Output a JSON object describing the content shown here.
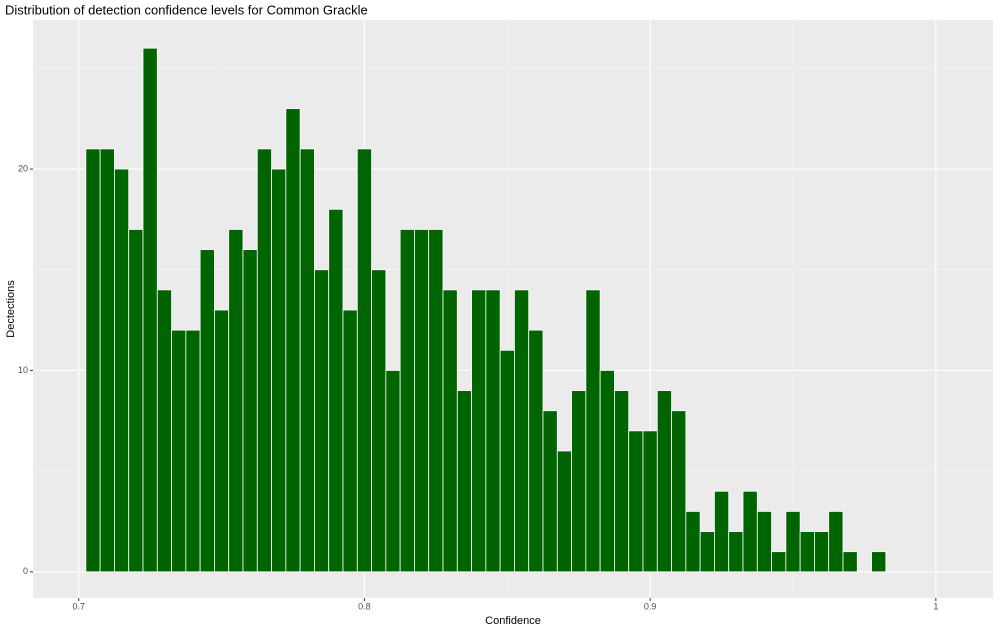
{
  "chart_data": {
    "type": "histogram",
    "title": "Distribution of detection confidence levels for Common Grackle",
    "x_label": "Confidence",
    "y_label": "Dectections",
    "bins": [
      0.7025,
      0.7075,
      0.7125,
      0.7175,
      0.7225,
      0.7275,
      0.7325,
      0.7375,
      0.7425,
      0.7475,
      0.7525,
      0.7575,
      0.7625,
      0.7675,
      0.7725,
      0.7775,
      0.7825,
      0.7875,
      0.7925,
      0.7975,
      0.8025,
      0.8075,
      0.8125,
      0.8175,
      0.8225,
      0.8275,
      0.8325,
      0.8375,
      0.8425,
      0.8475,
      0.8525,
      0.8575,
      0.8625,
      0.8675,
      0.8725,
      0.8775,
      0.8825,
      0.8875,
      0.8925,
      0.8975,
      0.9025,
      0.9075,
      0.9125,
      0.9175,
      0.9225,
      0.9275,
      0.9325,
      0.9375,
      0.9425,
      0.9475,
      0.9525,
      0.9575,
      0.9625,
      0.9675,
      0.9725,
      0.9775,
      0.9825
    ],
    "values": [
      21,
      21,
      20,
      17,
      26,
      14,
      12,
      12,
      16,
      13,
      17,
      16,
      21,
      20,
      23,
      21,
      15,
      18,
      13,
      21,
      15,
      10,
      17,
      17,
      17,
      14,
      9,
      14,
      14,
      11,
      14,
      12,
      8,
      6,
      9,
      14,
      10,
      9,
      7,
      7,
      9,
      8,
      3,
      2,
      4,
      2,
      4,
      3,
      1,
      3,
      2,
      2,
      3,
      1,
      0,
      1
    ],
    "color": "#006400",
    "xlim": [
      0.684,
      1.02
    ],
    "xticks": [
      0.7,
      0.8,
      0.9,
      1.0
    ],
    "xticks_minor": [
      0.75,
      0.85,
      0.95
    ],
    "ylim": [
      -1.3,
      27.4
    ],
    "yticks": [
      0,
      10,
      20
    ],
    "yticks_minor": [
      5,
      15,
      25
    ],
    "grid": true
  }
}
